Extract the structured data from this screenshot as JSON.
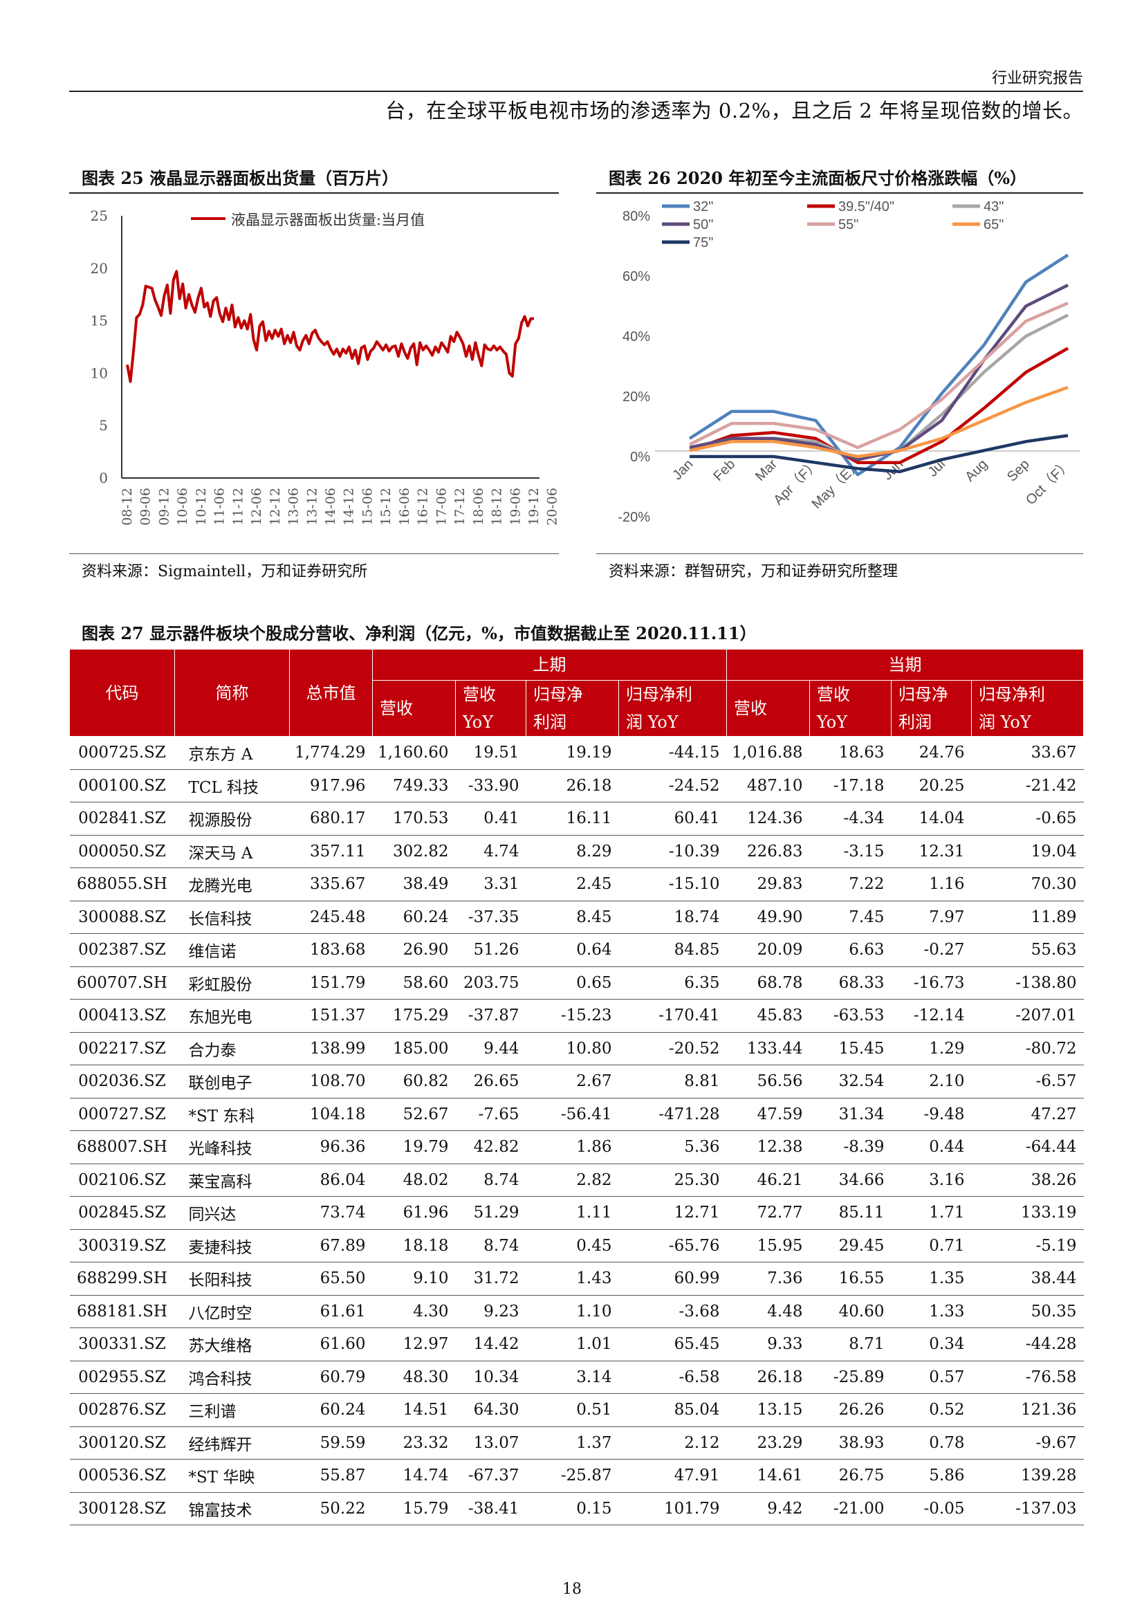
{
  "header": {
    "label": "行业研究报告"
  },
  "intro_text": "台，在全球平板电视市场的渗透率为 0.2%，且之后 2 年将呈现倍数的增长。",
  "figure25": {
    "caption": "图表 25   液晶显示器面板出货量（百万片）",
    "source": "资料来源：Sigmaintell，万和证券研究所",
    "chart_data": {
      "type": "line",
      "legend": "液晶显示器面板出货量:当月值",
      "color": "#c00000",
      "yticks": [
        "0",
        "5",
        "10",
        "15",
        "20",
        "25"
      ],
      "ylim": [
        0,
        25
      ],
      "xticks": [
        "08-12",
        "09-06",
        "09-12",
        "10-06",
        "10-12",
        "11-06",
        "11-12",
        "12-06",
        "12-12",
        "13-06",
        "13-12",
        "14-06",
        "14-12",
        "15-06",
        "15-12",
        "16-06",
        "16-12",
        "17-06",
        "17-12",
        "18-06",
        "18-12",
        "19-06",
        "19-12",
        "20-06"
      ],
      "x_start": "2008-12",
      "monthly_values": [
        10.8,
        9.2,
        12.0,
        15.3,
        15.6,
        16.5,
        18.3,
        18.2,
        18.1,
        17.0,
        16.3,
        15.5,
        17.4,
        18.4,
        15.7,
        18.9,
        19.7,
        17.1,
        18.5,
        16.2,
        17.5,
        16.5,
        15.8,
        17.2,
        18.1,
        16.3,
        16.7,
        15.4,
        16.9,
        17.2,
        15.7,
        14.9,
        16.2,
        15.1,
        16.5,
        14.4,
        15.3,
        14.3,
        15.0,
        14.2,
        15.6,
        13.2,
        12.2,
        14.5,
        14.9,
        13.1,
        14.0,
        13.3,
        14.1,
        13.5,
        14.2,
        12.8,
        13.6,
        12.9,
        13.9,
        12.6,
        12.2,
        13.1,
        13.6,
        12.8,
        13.8,
        14.1,
        13.4,
        13.0,
        12.7,
        13.0,
        12.3,
        11.8,
        12.3,
        11.6,
        12.3,
        11.9,
        12.5,
        11.4,
        12.2,
        10.9,
        12.4,
        12.6,
        11.3,
        12.1,
        12.4,
        13.0,
        12.6,
        12.2,
        12.7,
        12.1,
        12.5,
        12.6,
        11.6,
        12.8,
        12.0,
        11.4,
        12.4,
        12.8,
        10.8,
        12.9,
        12.2,
        12.6,
        12.2,
        11.7,
        12.5,
        12.0,
        12.9,
        12.5,
        12.0,
        13.5,
        13.0,
        13.9,
        13.4,
        12.8,
        11.6,
        12.6,
        11.3,
        12.9,
        11.7,
        10.7,
        12.7,
        12.3,
        12.2,
        12.6,
        12.2,
        12.5,
        12.1,
        11.8,
        10.0,
        9.7,
        12.8,
        13.3,
        14.8,
        15.4,
        14.5,
        15.2,
        15.2
      ]
    }
  },
  "figure26": {
    "caption": "图表 26   2020 年初至今主流面板尺寸价格涨跌幅（%）",
    "source": "资料来源：群智研究，万和证券研究所整理",
    "chart_data": {
      "type": "line",
      "categories": [
        "Jan",
        "Feb",
        "Mar",
        "Apr（F）",
        "May（E）",
        "Jun",
        "Jul",
        "Aug",
        "Sep",
        "Oct（F）"
      ],
      "yticks": [
        "-20%",
        "0%",
        "20%",
        "40%",
        "60%",
        "80%"
      ],
      "ylim": [
        -20,
        80
      ],
      "series": [
        {
          "name": "32\"",
          "color": "#4f81bd",
          "values": [
            6,
            15,
            15,
            12,
            -6,
            3,
            21,
            37,
            58,
            67
          ]
        },
        {
          "name": "39.5\"/40\"",
          "color": "#c00000",
          "values": [
            2,
            7,
            8,
            6,
            -2,
            -2,
            5,
            16,
            28,
            36
          ]
        },
        {
          "name": "43\"",
          "color": "#a6a6a6",
          "values": [
            3,
            6,
            6,
            5,
            -1,
            2,
            14,
            28,
            40,
            47
          ]
        },
        {
          "name": "50\"",
          "color": "#5e4b7c",
          "values": [
            3,
            6,
            6,
            4,
            -1,
            2,
            12,
            32,
            50,
            57
          ]
        },
        {
          "name": "55\"",
          "color": "#d9a1a1",
          "values": [
            4,
            11,
            11,
            9,
            3,
            9,
            19,
            32,
            45,
            51
          ]
        },
        {
          "name": "65\"",
          "color": "#f79646",
          "values": [
            2,
            5,
            5,
            3,
            0,
            2,
            6,
            12,
            18,
            23
          ]
        },
        {
          "name": "75\"",
          "color": "#1f3864",
          "values": [
            0,
            0,
            0,
            -2,
            -4,
            -5,
            -1,
            2,
            5,
            7
          ]
        }
      ]
    }
  },
  "figure27": {
    "caption": "图表 27   显示器件板块个股成分营收、净利润（亿元，%，市值数据截止至 2020.11.11）",
    "headers": {
      "code": "代码",
      "name": "简称",
      "market_cap": "总市值",
      "prev_period": "上期",
      "curr_period": "当期",
      "revenue": "营收",
      "revenue_yoy_1": "营收",
      "revenue_yoy_2": "YoY",
      "np_1": "归母净",
      "np_2": "利润",
      "np_yoy_1": "归母净利",
      "np_yoy_2": "润 YoY"
    },
    "rows": [
      [
        "000725.SZ",
        "京东方 A",
        "1,774.29",
        "1,160.60",
        "19.51",
        "19.19",
        "-44.15",
        "1,016.88",
        "18.63",
        "24.76",
        "33.67"
      ],
      [
        "000100.SZ",
        "TCL 科技",
        "917.96",
        "749.33",
        "-33.90",
        "26.18",
        "-24.52",
        "487.10",
        "-17.18",
        "20.25",
        "-21.42"
      ],
      [
        "002841.SZ",
        "视源股份",
        "680.17",
        "170.53",
        "0.41",
        "16.11",
        "60.41",
        "124.36",
        "-4.34",
        "14.04",
        "-0.65"
      ],
      [
        "000050.SZ",
        "深天马 A",
        "357.11",
        "302.82",
        "4.74",
        "8.29",
        "-10.39",
        "226.83",
        "-3.15",
        "12.31",
        "19.04"
      ],
      [
        "688055.SH",
        "龙腾光电",
        "335.67",
        "38.49",
        "3.31",
        "2.45",
        "-15.10",
        "29.83",
        "7.22",
        "1.16",
        "70.30"
      ],
      [
        "300088.SZ",
        "长信科技",
        "245.48",
        "60.24",
        "-37.35",
        "8.45",
        "18.74",
        "49.90",
        "7.45",
        "7.97",
        "11.89"
      ],
      [
        "002387.SZ",
        "维信诺",
        "183.68",
        "26.90",
        "51.26",
        "0.64",
        "84.85",
        "20.09",
        "6.63",
        "-0.27",
        "55.63"
      ],
      [
        "600707.SH",
        "彩虹股份",
        "151.79",
        "58.60",
        "203.75",
        "0.65",
        "6.35",
        "68.78",
        "68.33",
        "-16.73",
        "-138.80"
      ],
      [
        "000413.SZ",
        "东旭光电",
        "151.37",
        "175.29",
        "-37.87",
        "-15.23",
        "-170.41",
        "45.83",
        "-63.53",
        "-12.14",
        "-207.01"
      ],
      [
        "002217.SZ",
        "合力泰",
        "138.99",
        "185.00",
        "9.44",
        "10.80",
        "-20.52",
        "133.44",
        "15.45",
        "1.29",
        "-80.72"
      ],
      [
        "002036.SZ",
        "联创电子",
        "108.70",
        "60.82",
        "26.65",
        "2.67",
        "8.81",
        "56.56",
        "32.54",
        "2.10",
        "-6.57"
      ],
      [
        "000727.SZ",
        "*ST 东科",
        "104.18",
        "52.67",
        "-7.65",
        "-56.41",
        "-471.28",
        "47.59",
        "31.34",
        "-9.48",
        "47.27"
      ],
      [
        "688007.SH",
        "光峰科技",
        "96.36",
        "19.79",
        "42.82",
        "1.86",
        "5.36",
        "12.38",
        "-8.39",
        "0.44",
        "-64.44"
      ],
      [
        "002106.SZ",
        "莱宝高科",
        "86.04",
        "48.02",
        "8.74",
        "2.82",
        "25.30",
        "46.21",
        "34.66",
        "3.16",
        "38.26"
      ],
      [
        "002845.SZ",
        "同兴达",
        "73.74",
        "61.96",
        "51.29",
        "1.11",
        "12.71",
        "72.77",
        "85.11",
        "1.71",
        "133.19"
      ],
      [
        "300319.SZ",
        "麦捷科技",
        "67.89",
        "18.18",
        "8.74",
        "0.45",
        "-65.76",
        "15.95",
        "29.45",
        "0.71",
        "-5.19"
      ],
      [
        "688299.SH",
        "长阳科技",
        "65.50",
        "9.10",
        "31.72",
        "1.43",
        "60.99",
        "7.36",
        "16.55",
        "1.35",
        "38.44"
      ],
      [
        "688181.SH",
        "八亿时空",
        "61.61",
        "4.30",
        "9.23",
        "1.10",
        "-3.68",
        "4.48",
        "40.60",
        "1.33",
        "50.35"
      ],
      [
        "300331.SZ",
        "苏大维格",
        "61.60",
        "12.97",
        "14.42",
        "1.01",
        "65.45",
        "9.33",
        "8.71",
        "0.34",
        "-44.28"
      ],
      [
        "002955.SZ",
        "鸿合科技",
        "60.79",
        "48.30",
        "10.34",
        "3.14",
        "-6.58",
        "26.18",
        "-25.89",
        "0.57",
        "-76.58"
      ],
      [
        "002876.SZ",
        "三利谱",
        "60.24",
        "14.51",
        "64.30",
        "0.51",
        "85.04",
        "13.15",
        "26.26",
        "0.52",
        "121.36"
      ],
      [
        "300120.SZ",
        "经纬辉开",
        "59.59",
        "23.32",
        "13.07",
        "1.37",
        "2.12",
        "23.29",
        "38.93",
        "0.78",
        "-9.67"
      ],
      [
        "000536.SZ",
        "*ST 华映",
        "55.87",
        "14.74",
        "-67.37",
        "-25.87",
        "47.91",
        "14.61",
        "26.75",
        "5.86",
        "139.28"
      ],
      [
        "300128.SZ",
        "锦富技术",
        "50.22",
        "15.79",
        "-38.41",
        "0.15",
        "101.79",
        "9.42",
        "-21.00",
        "-0.05",
        "-137.03"
      ]
    ]
  },
  "page_number": "18"
}
